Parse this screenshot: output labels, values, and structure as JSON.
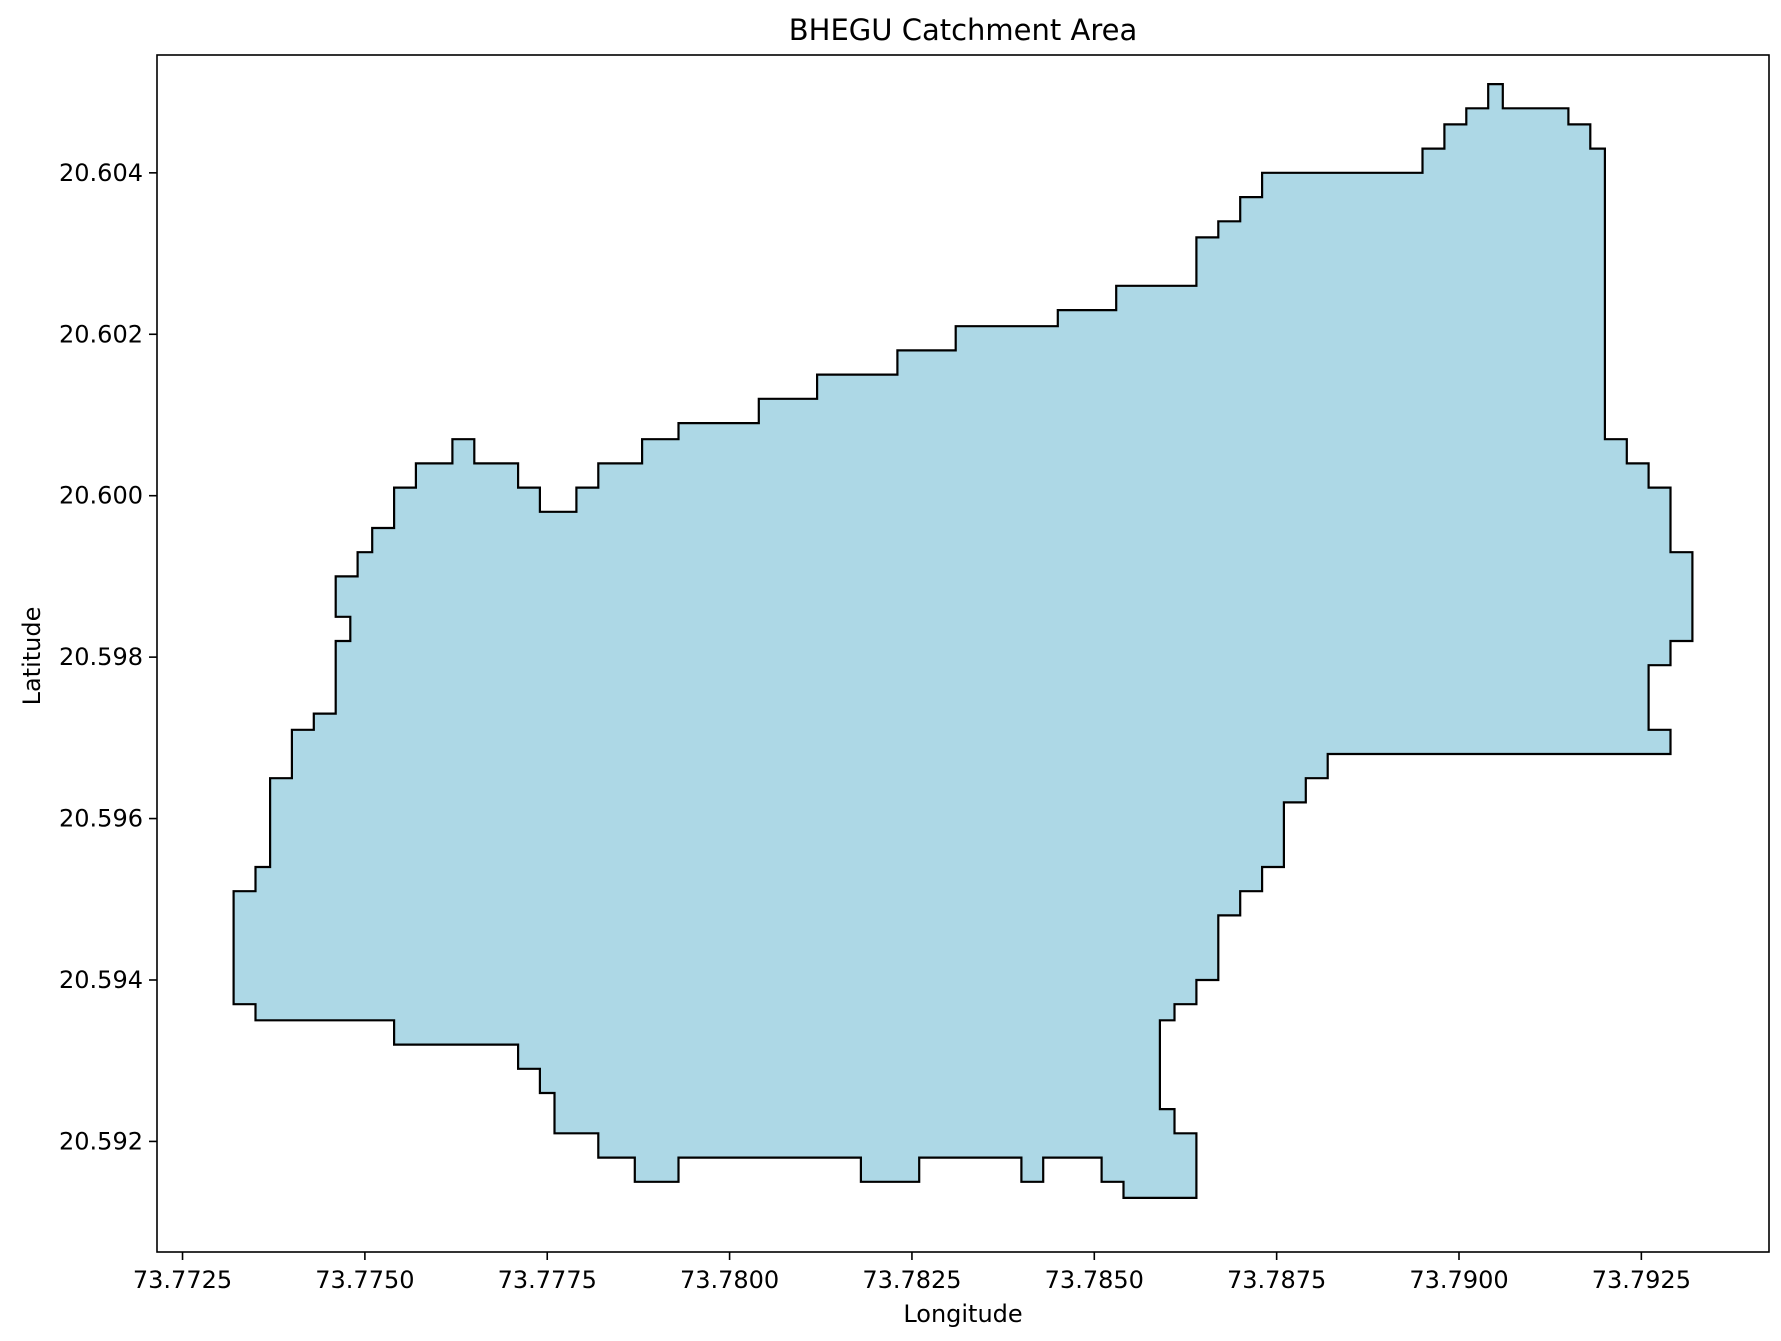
{
  "chart_data": {
    "type": "area",
    "title": "BHEGU Catchment Area",
    "xlabel": "Longitude",
    "ylabel": "Latitude",
    "xlim": [
      73.77215,
      73.79425
    ],
    "ylim": [
      20.59063,
      20.60546
    ],
    "x_ticks": [
      {
        "value": 73.7725,
        "label": "73.7725"
      },
      {
        "value": 73.775,
        "label": "73.7750"
      },
      {
        "value": 73.7775,
        "label": "73.7775"
      },
      {
        "value": 73.78,
        "label": "73.7800"
      },
      {
        "value": 73.7825,
        "label": "73.7825"
      },
      {
        "value": 73.785,
        "label": "73.7850"
      },
      {
        "value": 73.7875,
        "label": "73.7875"
      },
      {
        "value": 73.79,
        "label": "73.7900"
      },
      {
        "value": 73.7925,
        "label": "73.7925"
      }
    ],
    "y_ticks": [
      {
        "value": 20.592,
        "label": "20.592"
      },
      {
        "value": 20.594,
        "label": "20.594"
      },
      {
        "value": 20.596,
        "label": "20.596"
      },
      {
        "value": 20.598,
        "label": "20.598"
      },
      {
        "value": 20.6,
        "label": "20.600"
      },
      {
        "value": 20.602,
        "label": "20.602"
      },
      {
        "value": 20.604,
        "label": "20.604"
      }
    ],
    "grid": false,
    "legend": "none",
    "colors": {
      "fill": "#add8e6",
      "edge": "#000000",
      "frame": "#000000",
      "background": "#ffffff"
    },
    "polygon": [
      [
        73.7732,
        20.5951
      ],
      [
        73.7735,
        20.5951
      ],
      [
        73.7735,
        20.5954
      ],
      [
        73.7737,
        20.5954
      ],
      [
        73.7737,
        20.5965
      ],
      [
        73.774,
        20.5965
      ],
      [
        73.774,
        20.5971
      ],
      [
        73.7743,
        20.5971
      ],
      [
        73.7743,
        20.5973
      ],
      [
        73.7746,
        20.5973
      ],
      [
        73.7746,
        20.5982
      ],
      [
        73.7748,
        20.5982
      ],
      [
        73.7748,
        20.5985
      ],
      [
        73.7746,
        20.5985
      ],
      [
        73.7746,
        20.599
      ],
      [
        73.7749,
        20.599
      ],
      [
        73.7749,
        20.5993
      ],
      [
        73.7751,
        20.5993
      ],
      [
        73.7751,
        20.5996
      ],
      [
        73.7754,
        20.5996
      ],
      [
        73.7754,
        20.6001
      ],
      [
        73.7757,
        20.6001
      ],
      [
        73.7757,
        20.6004
      ],
      [
        73.7762,
        20.6004
      ],
      [
        73.7762,
        20.6007
      ],
      [
        73.7765,
        20.6007
      ],
      [
        73.7765,
        20.6004
      ],
      [
        73.7771,
        20.6004
      ],
      [
        73.7771,
        20.6001
      ],
      [
        73.7774,
        20.6001
      ],
      [
        73.7774,
        20.5998
      ],
      [
        73.7779,
        20.5998
      ],
      [
        73.7779,
        20.6001
      ],
      [
        73.7782,
        20.6001
      ],
      [
        73.7782,
        20.6004
      ],
      [
        73.7788,
        20.6004
      ],
      [
        73.7788,
        20.6007
      ],
      [
        73.7793,
        20.6007
      ],
      [
        73.7793,
        20.6009
      ],
      [
        73.7804,
        20.6009
      ],
      [
        73.7804,
        20.6012
      ],
      [
        73.7812,
        20.6012
      ],
      [
        73.7812,
        20.6015
      ],
      [
        73.7823,
        20.6015
      ],
      [
        73.7823,
        20.6018
      ],
      [
        73.7831,
        20.6018
      ],
      [
        73.7831,
        20.6021
      ],
      [
        73.7845,
        20.6021
      ],
      [
        73.7845,
        20.6023
      ],
      [
        73.7853,
        20.6023
      ],
      [
        73.7853,
        20.6026
      ],
      [
        73.7864,
        20.6026
      ],
      [
        73.7864,
        20.6032
      ],
      [
        73.7867,
        20.6032
      ],
      [
        73.7867,
        20.6034
      ],
      [
        73.787,
        20.6034
      ],
      [
        73.787,
        20.6037
      ],
      [
        73.7873,
        20.6037
      ],
      [
        73.7873,
        20.604
      ],
      [
        73.7895,
        20.604
      ],
      [
        73.7895,
        20.6043
      ],
      [
        73.7898,
        20.6043
      ],
      [
        73.7898,
        20.6046
      ],
      [
        73.7901,
        20.6046
      ],
      [
        73.7901,
        20.6048
      ],
      [
        73.7904,
        20.6048
      ],
      [
        73.7904,
        20.6051
      ],
      [
        73.7906,
        20.6051
      ],
      [
        73.7906,
        20.6048
      ],
      [
        73.7915,
        20.6048
      ],
      [
        73.7915,
        20.6046
      ],
      [
        73.7918,
        20.6046
      ],
      [
        73.7918,
        20.6043
      ],
      [
        73.792,
        20.6043
      ],
      [
        73.792,
        20.6007
      ],
      [
        73.7923,
        20.6007
      ],
      [
        73.7923,
        20.6004
      ],
      [
        73.7926,
        20.6004
      ],
      [
        73.7926,
        20.6001
      ],
      [
        73.7929,
        20.6001
      ],
      [
        73.7929,
        20.5993
      ],
      [
        73.7932,
        20.5993
      ],
      [
        73.7932,
        20.5982
      ],
      [
        73.7929,
        20.5982
      ],
      [
        73.7929,
        20.5979
      ],
      [
        73.7926,
        20.5979
      ],
      [
        73.7926,
        20.5971
      ],
      [
        73.7929,
        20.5971
      ],
      [
        73.7929,
        20.5968
      ],
      [
        73.7882,
        20.5968
      ],
      [
        73.7882,
        20.5965
      ],
      [
        73.7879,
        20.5965
      ],
      [
        73.7879,
        20.5962
      ],
      [
        73.7876,
        20.5962
      ],
      [
        73.7876,
        20.5954
      ],
      [
        73.7873,
        20.5954
      ],
      [
        73.7873,
        20.5951
      ],
      [
        73.787,
        20.5951
      ],
      [
        73.787,
        20.5948
      ],
      [
        73.7867,
        20.5948
      ],
      [
        73.7867,
        20.594
      ],
      [
        73.7864,
        20.594
      ],
      [
        73.7864,
        20.5937
      ],
      [
        73.7861,
        20.5937
      ],
      [
        73.7861,
        20.5935
      ],
      [
        73.7859,
        20.5935
      ],
      [
        73.7859,
        20.5924
      ],
      [
        73.7861,
        20.5924
      ],
      [
        73.7861,
        20.5921
      ],
      [
        73.7864,
        20.5921
      ],
      [
        73.7864,
        20.5913
      ],
      [
        73.7854,
        20.5913
      ],
      [
        73.7854,
        20.5915
      ],
      [
        73.7851,
        20.5915
      ],
      [
        73.7851,
        20.5918
      ],
      [
        73.7843,
        20.5918
      ],
      [
        73.7843,
        20.5915
      ],
      [
        73.784,
        20.5915
      ],
      [
        73.784,
        20.5918
      ],
      [
        73.7826,
        20.5918
      ],
      [
        73.7826,
        20.5915
      ],
      [
        73.7818,
        20.5915
      ],
      [
        73.7818,
        20.5918
      ],
      [
        73.7793,
        20.5918
      ],
      [
        73.7793,
        20.5915
      ],
      [
        73.7787,
        20.5915
      ],
      [
        73.7787,
        20.5918
      ],
      [
        73.7782,
        20.5918
      ],
      [
        73.7782,
        20.5921
      ],
      [
        73.7776,
        20.5921
      ],
      [
        73.7776,
        20.5926
      ],
      [
        73.7774,
        20.5926
      ],
      [
        73.7774,
        20.5929
      ],
      [
        73.7771,
        20.5929
      ],
      [
        73.7771,
        20.5932
      ],
      [
        73.7754,
        20.5932
      ],
      [
        73.7754,
        20.5935
      ],
      [
        73.7735,
        20.5935
      ],
      [
        73.7735,
        20.5937
      ],
      [
        73.7732,
        20.5937
      ]
    ]
  }
}
